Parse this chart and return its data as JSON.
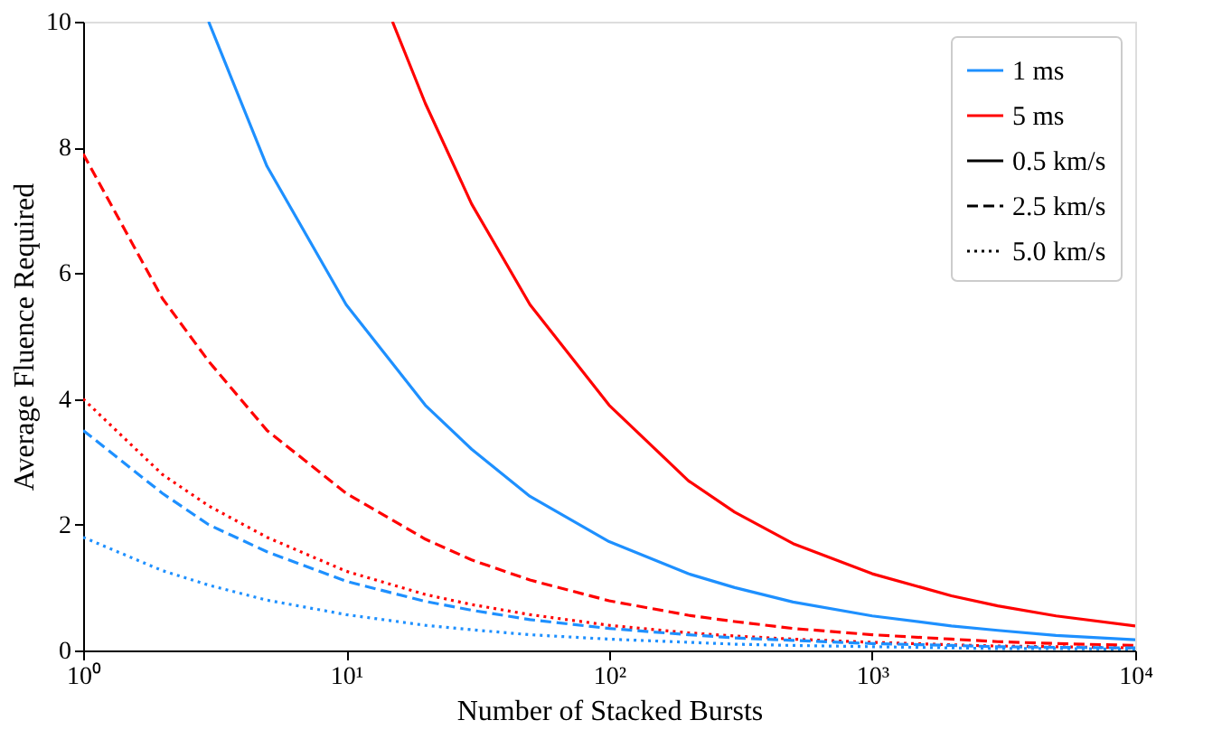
{
  "chart_data": {
    "type": "line",
    "xlabel": "Number of Stacked Bursts",
    "ylabel": "Average Fluence Required",
    "log": "x",
    "xlim": [
      1,
      10000
    ],
    "ylim": [
      0,
      10
    ],
    "xticks": [
      {
        "value": 1,
        "label": "10⁰"
      },
      {
        "value": 10,
        "label": "10¹"
      },
      {
        "value": 100,
        "label": "10²"
      },
      {
        "value": 1000,
        "label": "10³"
      },
      {
        "value": 10000,
        "label": "10⁴"
      }
    ],
    "yticks": [
      0,
      2,
      4,
      6,
      8,
      10
    ],
    "grid": false,
    "legend": "top right",
    "marker": "none",
    "series": [
      {
        "color": "#1e90ff",
        "line_style": "solid",
        "x": [
          3,
          5,
          10,
          20,
          30,
          50,
          100,
          200,
          300,
          500,
          1000,
          2000,
          3000,
          5000,
          10000
        ],
        "values": [
          10.0,
          7.7,
          5.5,
          3.9,
          3.2,
          2.45,
          1.73,
          1.22,
          1.0,
          0.77,
          0.55,
          0.39,
          0.32,
          0.24,
          0.17
        ]
      },
      {
        "color": "#ff0000",
        "line_style": "solid",
        "x": [
          15,
          20,
          30,
          50,
          100,
          200,
          300,
          500,
          1000,
          2000,
          3000,
          5000,
          10000
        ],
        "values": [
          10.0,
          8.7,
          7.1,
          5.5,
          3.9,
          2.7,
          2.2,
          1.7,
          1.22,
          0.87,
          0.71,
          0.55,
          0.39
        ]
      },
      {
        "color": "#ff0000",
        "line_style": "dashed",
        "x": [
          1,
          2,
          3,
          5,
          10,
          20,
          30,
          50,
          100,
          200,
          300,
          500,
          1000,
          2000,
          3000,
          5000,
          10000
        ],
        "values": [
          7.9,
          5.6,
          4.6,
          3.5,
          2.5,
          1.77,
          1.44,
          1.12,
          0.79,
          0.56,
          0.46,
          0.35,
          0.25,
          0.18,
          0.14,
          0.11,
          0.08
        ]
      },
      {
        "color": "#ff0000",
        "line_style": "dotted",
        "x": [
          1,
          2,
          3,
          5,
          10,
          20,
          30,
          50,
          100,
          200,
          300,
          500,
          1000,
          2000,
          3000,
          5000,
          10000
        ],
        "values": [
          4.0,
          2.8,
          2.3,
          1.8,
          1.26,
          0.89,
          0.73,
          0.57,
          0.4,
          0.28,
          0.23,
          0.18,
          0.13,
          0.09,
          0.07,
          0.06,
          0.04
        ]
      },
      {
        "color": "#1e90ff",
        "line_style": "dashed",
        "x": [
          1,
          2,
          3,
          5,
          10,
          20,
          30,
          50,
          100,
          200,
          300,
          500,
          1000,
          2000,
          3000,
          5000,
          10000
        ],
        "values": [
          3.5,
          2.5,
          2.0,
          1.57,
          1.1,
          0.78,
          0.64,
          0.49,
          0.35,
          0.25,
          0.2,
          0.16,
          0.11,
          0.08,
          0.06,
          0.05,
          0.04
        ]
      },
      {
        "color": "#1e90ff",
        "line_style": "dotted",
        "x": [
          1,
          2,
          3,
          5,
          10,
          20,
          30,
          50,
          100,
          200,
          300,
          500,
          1000,
          2000,
          3000,
          5000,
          10000
        ],
        "values": [
          1.8,
          1.27,
          1.04,
          0.8,
          0.57,
          0.4,
          0.33,
          0.25,
          0.18,
          0.13,
          0.1,
          0.08,
          0.06,
          0.04,
          0.03,
          0.03,
          0.02
        ]
      },
      {
        "name": "1 ms",
        "color": "#1e90ff",
        "line_style": "solid"
      },
      {
        "name": "5 ms",
        "color": "#ff0000",
        "line_style": "solid"
      },
      {
        "name": "0.5 km/s",
        "color": "#000000",
        "line_style": "solid"
      },
      {
        "name": "2.5 km/s",
        "color": "#000000",
        "line_style": "dashed"
      },
      {
        "name": "5.0 km/s",
        "color": "#000000",
        "line_style": "dotted"
      }
    ]
  }
}
